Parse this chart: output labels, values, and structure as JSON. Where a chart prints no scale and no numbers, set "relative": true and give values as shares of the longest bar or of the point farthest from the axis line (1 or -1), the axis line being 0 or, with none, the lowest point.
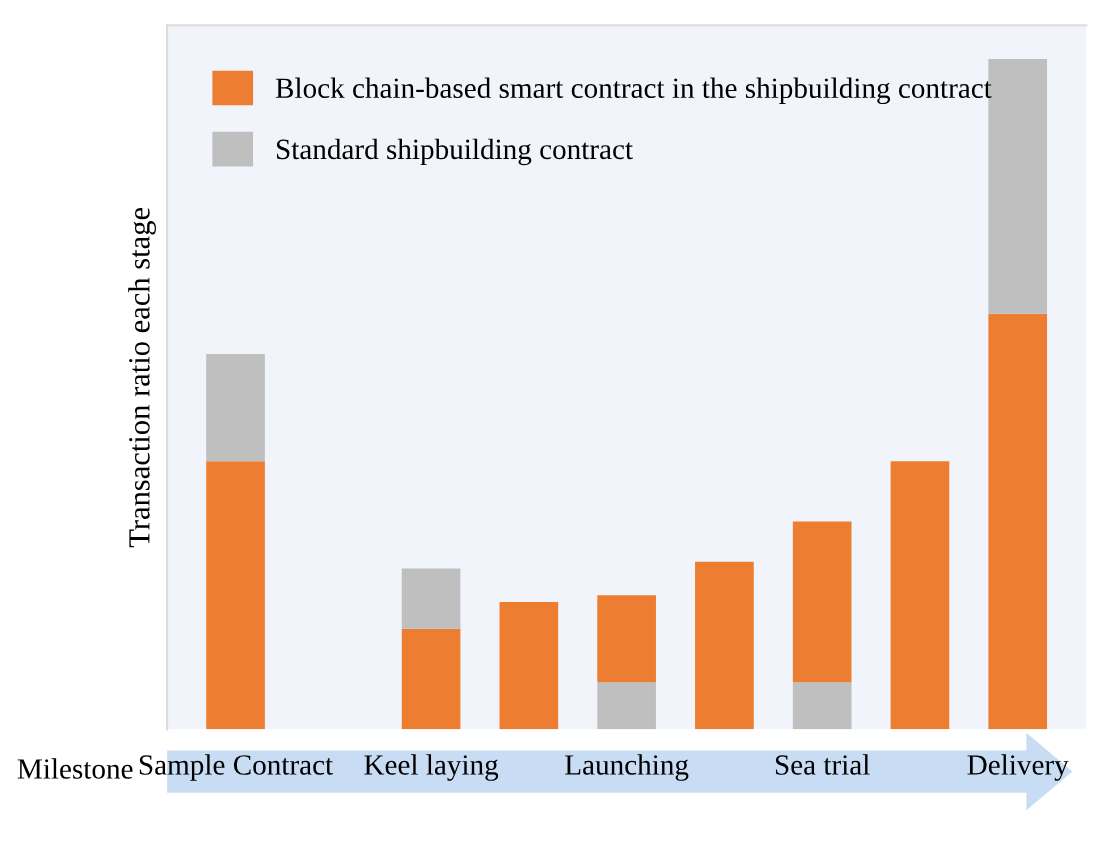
{
  "chart_data": {
    "type": "bar",
    "stacked": true,
    "relative": true,
    "xlabel": "Milestone",
    "ylabel": "Transaction ratio each stage",
    "categories": [
      "Sample Contract",
      null,
      "Keel laying",
      null,
      "Launching",
      null,
      "Sea trial",
      null,
      "Delivery"
    ],
    "series": [
      {
        "color": "#bfbfbf",
        "values": [
          0,
          0,
          0,
          0,
          0.07,
          0,
          0.07,
          0,
          0
        ]
      },
      {
        "name": "Block chain-based smart contract in the shipbuilding contract",
        "color": "#ed7d31",
        "values": [
          0.4,
          0,
          0.15,
          0.19,
          0.13,
          0.25,
          0.24,
          0.4,
          0.62
        ]
      },
      {
        "name": "Standard shipbuilding contract",
        "color": "#bfbfbf",
        "values": [
          0.16,
          0,
          0.09,
          0,
          0,
          0,
          0,
          0,
          0.38
        ]
      }
    ],
    "legend": "top left",
    "grid": false
  }
}
